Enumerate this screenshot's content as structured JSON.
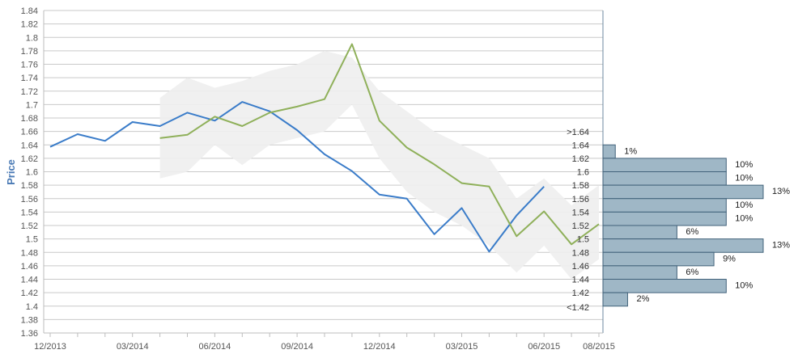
{
  "chart_data": {
    "type": "line",
    "ylabel": "Price",
    "ylim": [
      1.36,
      1.84
    ],
    "yticks": [
      "1.84",
      "1.82",
      "1.8",
      "1.78",
      "1.76",
      "1.74",
      "1.72",
      "1.7",
      "1.68",
      "1.66",
      "1.64",
      "1.62",
      "1.6",
      "1.58",
      "1.56",
      "1.54",
      "1.52",
      "1.5",
      "1.48",
      "1.46",
      "1.44",
      "1.42",
      "1.4",
      "1.38",
      "1.36"
    ],
    "xticks": [
      "12/2013",
      "03/2014",
      "06/2014",
      "09/2014",
      "12/2014",
      "03/2015",
      "06/2015",
      "08/2015"
    ],
    "x": [
      "2013-12",
      "2014-01",
      "2014-02",
      "2014-03",
      "2014-04",
      "2014-05",
      "2014-06",
      "2014-07",
      "2014-08",
      "2014-09",
      "2014-10",
      "2014-11",
      "2014-12",
      "2015-01",
      "2015-02",
      "2015-03",
      "2015-04",
      "2015-05",
      "2015-06",
      "2015-07",
      "2015-08"
    ],
    "series": [
      {
        "color": "#3a7cc9",
        "values": [
          1.637,
          1.656,
          1.646,
          1.674,
          1.668,
          1.688,
          1.676,
          1.704,
          1.69,
          1.662,
          1.626,
          1.601,
          1.566,
          1.56,
          1.507,
          1.546,
          1.481,
          1.535,
          1.578,
          null,
          null
        ]
      },
      {
        "color": "#8fb05a",
        "values": [
          null,
          null,
          null,
          null,
          1.65,
          1.655,
          1.682,
          1.668,
          1.688,
          1.697,
          1.708,
          1.79,
          1.676,
          1.636,
          1.611,
          1.583,
          1.578,
          1.504,
          1.541,
          1.492,
          1.522
        ]
      }
    ],
    "band": {
      "color": "#eeeeee",
      "upper": [
        null,
        null,
        null,
        null,
        1.71,
        1.74,
        1.725,
        1.735,
        1.75,
        1.76,
        1.78,
        1.77,
        1.72,
        1.69,
        1.66,
        1.64,
        1.62,
        1.56,
        1.59,
        1.55,
        1.58
      ],
      "lower": [
        null,
        null,
        null,
        null,
        1.59,
        1.6,
        1.64,
        1.61,
        1.64,
        1.65,
        1.66,
        1.7,
        1.62,
        1.57,
        1.54,
        1.52,
        1.49,
        1.45,
        1.49,
        1.44,
        1.47
      ]
    },
    "distribution": {
      "color": "#9fb7c6",
      "bins": [
        {
          "label": ">1.64",
          "pct": null
        },
        {
          "label": "1.64",
          "pct": "1%",
          "value": 1
        },
        {
          "label": "1.62",
          "pct": "10%",
          "value": 10
        },
        {
          "label": "1.6",
          "pct": "10%",
          "value": 10
        },
        {
          "label": "1.58",
          "pct": "13%",
          "value": 13
        },
        {
          "label": "1.56",
          "pct": "10%",
          "value": 10
        },
        {
          "label": "1.54",
          "pct": "10%",
          "value": 10
        },
        {
          "label": "1.52",
          "pct": "6%",
          "value": 6
        },
        {
          "label": "1.5",
          "pct": "13%",
          "value": 13
        },
        {
          "label": "1.48",
          "pct": "9%",
          "value": 9
        },
        {
          "label": "1.46",
          "pct": "6%",
          "value": 6
        },
        {
          "label": "1.44",
          "pct": "10%",
          "value": 10
        },
        {
          "label": "1.42",
          "pct": "2%",
          "value": 2
        },
        {
          "label": "<1.42",
          "pct": null
        }
      ]
    },
    "grid": true
  }
}
